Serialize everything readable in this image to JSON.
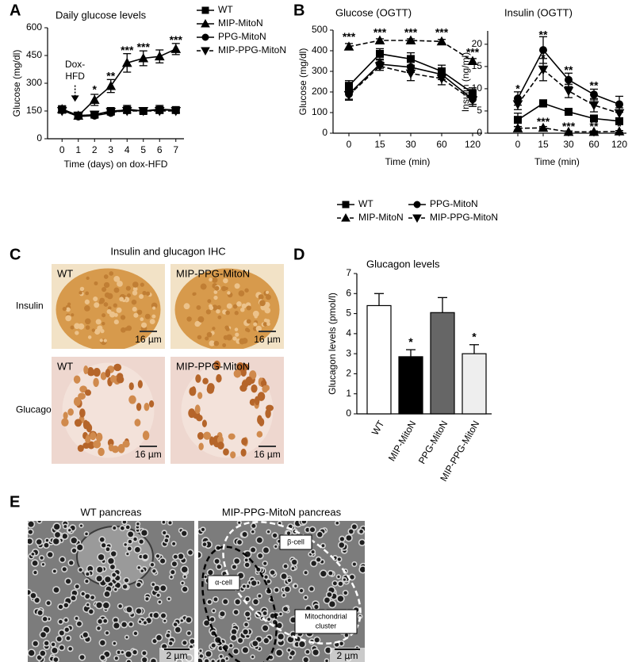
{
  "panel_labels": [
    "A",
    "B",
    "C",
    "D",
    "E"
  ],
  "chart_data": [
    {
      "type": "line",
      "title": "Daily glucose levels",
      "x_label": "Time (days) on dox-HFD",
      "y_label": "Glucose (mg/dl)",
      "x": [
        0,
        1,
        2,
        3,
        4,
        5,
        6,
        7
      ],
      "xlim": [
        -0.5,
        7.5
      ],
      "xticks": [
        0,
        1,
        2,
        3,
        4,
        5,
        6,
        7
      ],
      "ylim": [
        0,
        600
      ],
      "yticks": [
        0,
        150,
        300,
        450,
        600
      ],
      "legend": "right",
      "series": [
        {
          "name": "WT",
          "color": "#000000",
          "marker": "square",
          "line": "solid",
          "values": [
            160,
            125,
            130,
            150,
            155,
            150,
            155,
            155
          ],
          "errors": [
            15,
            8,
            12,
            12,
            10,
            10,
            15,
            12
          ]
        },
        {
          "name": "MIP-MitoN",
          "color": "#000000",
          "marker": "triangle-up",
          "line": "solid",
          "values": [
            160,
            125,
            210,
            285,
            410,
            435,
            445,
            485
          ],
          "errors": [
            15,
            10,
            30,
            35,
            50,
            40,
            35,
            30
          ]
        },
        {
          "name": "PPG-MitoN",
          "color": "#000000",
          "marker": "circle",
          "line": "solid",
          "values": [
            155,
            120,
            125,
            140,
            160,
            150,
            160,
            155
          ],
          "errors": [
            15,
            8,
            10,
            12,
            20,
            12,
            20,
            12
          ]
        },
        {
          "name": "MIP-PPG-MitoN",
          "color": "#000000",
          "marker": "triangle-down",
          "line": "dashed",
          "values": [
            150,
            125,
            130,
            145,
            150,
            150,
            150,
            150
          ],
          "errors": [
            12,
            8,
            12,
            12,
            12,
            10,
            12,
            12
          ]
        }
      ],
      "annotations": [
        {
          "text": [
            "Dox-",
            "HFD"
          ],
          "x": 0.8,
          "y": 400,
          "arrow_to": 200
        },
        {
          "text": "*",
          "x": 2,
          "y": 262
        },
        {
          "text": "**",
          "x": 3,
          "y": 335
        },
        {
          "text": "***",
          "x": 4,
          "y": 475
        },
        {
          "text": "***",
          "x": 5,
          "y": 492
        },
        {
          "text": "***",
          "x": 7,
          "y": 530
        }
      ]
    },
    {
      "type": "line",
      "title": "Glucose (OGTT)",
      "x_label": "Time (min)",
      "y_label": "Glucose (mg/dl)",
      "categories": [
        "0",
        "15",
        "30",
        "60",
        "120"
      ],
      "ylim": [
        0,
        500
      ],
      "yticks": [
        0,
        100,
        200,
        300,
        400,
        500
      ],
      "legend": "bottom",
      "series": [
        {
          "name": "WT",
          "color": "#000000",
          "marker": "square",
          "line": "solid",
          "values": [
            230,
            385,
            360,
            300,
            195
          ],
          "errors": [
            25,
            25,
            30,
            30,
            25
          ]
        },
        {
          "name": "MIP-MitoN",
          "color": "#000000",
          "marker": "triangle-up",
          "line": "dashed",
          "values": [
            420,
            450,
            450,
            445,
            350
          ],
          "errors": [
            15,
            8,
            8,
            10,
            12
          ]
        },
        {
          "name": "PPG-MitoN",
          "color": "#000000",
          "marker": "circle",
          "line": "solid",
          "values": [
            190,
            335,
            320,
            285,
            165
          ],
          "errors": [
            25,
            20,
            25,
            25,
            25
          ]
        },
        {
          "name": "MIP-PPG-MitoN",
          "color": "#000000",
          "marker": "triangle-down",
          "line": "dashed",
          "values": [
            185,
            325,
            290,
            265,
            160
          ],
          "errors": [
            25,
            20,
            35,
            30,
            30
          ]
        }
      ],
      "annotations": [
        {
          "text": "***",
          "x": "0",
          "y": 465
        },
        {
          "text": "***",
          "x": "15",
          "y": 485
        },
        {
          "text": "***",
          "x": "30",
          "y": 485
        },
        {
          "text": "***",
          "x": "60",
          "y": 485
        },
        {
          "text": "***",
          "x": "120",
          "y": 390
        }
      ]
    },
    {
      "type": "line",
      "title": "Insulin (OGTT)",
      "x_label": "Time (min)",
      "y_label": "Insulin (ng/ml)",
      "categories": [
        "0",
        "15",
        "30",
        "60",
        "120"
      ],
      "ylim": [
        0,
        23
      ],
      "yticks": [
        0,
        5,
        10,
        15,
        20
      ],
      "series": [
        {
          "name": "WT",
          "color": "#000000",
          "marker": "square",
          "line": "solid",
          "values": [
            3,
            6.7,
            4.8,
            3.3,
            2.7
          ],
          "errors": [
            1.5,
            0.8,
            0.6,
            0.7,
            0.5
          ]
        },
        {
          "name": "MIP-MitoN",
          "color": "#000000",
          "marker": "triangle-up",
          "line": "dashed",
          "values": [
            1.1,
            1.2,
            0.3,
            0.3,
            0.4
          ],
          "errors": [
            0.4,
            0.3,
            0.2,
            0.2,
            0.2
          ]
        },
        {
          "name": "PPG-MitoN",
          "color": "#000000",
          "marker": "circle",
          "line": "solid",
          "values": [
            7.8,
            18.7,
            12,
            8.7,
            6.5
          ],
          "errors": [
            1.5,
            3,
            1.5,
            1.2,
            1.8
          ]
        },
        {
          "name": "MIP-PPG-MitoN",
          "color": "#000000",
          "marker": "triangle-down",
          "line": "dashed",
          "values": [
            6.5,
            14.3,
            9.5,
            6.3,
            4.5
          ],
          "errors": [
            1.2,
            2.5,
            1.5,
            1.5,
            1.2
          ]
        }
      ],
      "annotations": [
        {
          "text": "*",
          "x": "0",
          "y": 9.8
        },
        {
          "text": "**",
          "x": "15",
          "y": 22
        },
        {
          "text": "*",
          "x": "15",
          "y": 16.8
        },
        {
          "text": "**",
          "x": "30",
          "y": 14
        },
        {
          "text": "**",
          "x": "60",
          "y": 10.6
        },
        {
          "text": "***",
          "x": "15",
          "y": 2.4
        },
        {
          "text": "***",
          "x": "30",
          "y": 1.4
        },
        {
          "text": "**",
          "x": "60",
          "y": 1.4
        },
        {
          "text": "*",
          "x": "120",
          "y": 1.4
        }
      ]
    },
    {
      "type": "bar",
      "title": "Glucagon levels",
      "y_label": "Glucagon levels (pmol/l)",
      "categories": [
        "WT",
        "MIP-MitoN",
        "PPG-MitoN",
        "MIP-PPG-MitoN"
      ],
      "values": [
        5.4,
        2.85,
        5.05,
        3.0
      ],
      "errors": [
        0.6,
        0.35,
        0.75,
        0.45
      ],
      "colors": [
        "#ffffff",
        "#000000",
        "#666666",
        "#eeeeee"
      ],
      "ylim": [
        0,
        7
      ],
      "yticks": [
        0,
        1,
        2,
        3,
        4,
        5,
        6,
        7
      ],
      "annotations": [
        {
          "text": "*",
          "x": "MIP-MitoN",
          "y": 3.55
        },
        {
          "text": "*",
          "x": "MIP-PPG-MitoN",
          "y": 3.8
        }
      ]
    }
  ],
  "ihc": {
    "title": "Insulin and glucagon IHC",
    "rows": [
      {
        "label": "Insulin",
        "images": [
          {
            "label": "WT",
            "scale": "16 µm"
          },
          {
            "label": "MIP-PPG-MitoN",
            "scale": "16 µm"
          }
        ]
      },
      {
        "label": "Glucagon",
        "images": [
          {
            "label": "WT",
            "scale": "16 µm"
          },
          {
            "label": "MIP-PPG-MitoN",
            "scale": "16 µm"
          }
        ]
      }
    ]
  },
  "em": {
    "images": [
      {
        "title": "WT pancreas",
        "scale": "2 µm"
      },
      {
        "title": "MIP-PPG-MitoN pancreas",
        "scale": "2 µm",
        "callouts": [
          {
            "text": [
              "α-cell"
            ]
          },
          {
            "text": [
              "β-cell"
            ]
          },
          {
            "text": [
              "Mitochondrial",
              "cluster"
            ]
          }
        ]
      }
    ]
  }
}
